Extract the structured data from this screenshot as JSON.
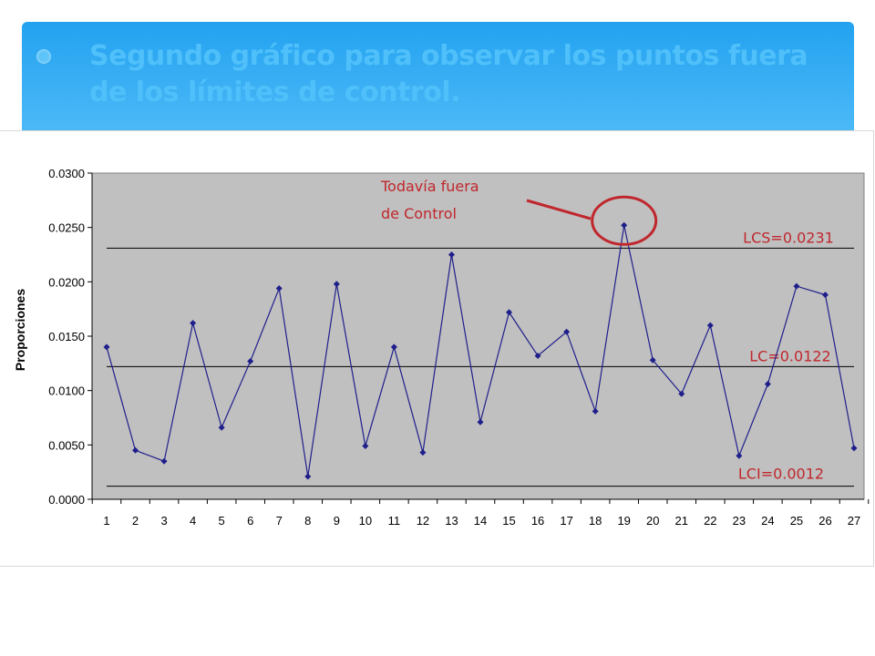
{
  "slide": {
    "title": "Segundo gráfico para observar los puntos fuera de los límites de control."
  },
  "colors": {
    "banner": "#2aa6f2",
    "title_text": "#4fc0fa",
    "plot_bg": "#c0c0c0",
    "series": "#1f1f8c",
    "annotation": "#c0272d"
  },
  "chart_data": {
    "type": "line",
    "ylabel": "Proporciones",
    "xlabel": "",
    "x": [
      1,
      2,
      3,
      4,
      5,
      6,
      7,
      8,
      9,
      10,
      11,
      12,
      13,
      14,
      15,
      16,
      17,
      18,
      19,
      20,
      21,
      22,
      23,
      24,
      25,
      26,
      27
    ],
    "series": [
      {
        "values": [
          0.014,
          0.0045,
          0.0035,
          0.0162,
          0.0066,
          0.0127,
          0.0194,
          0.0021,
          0.0198,
          0.0049,
          0.014,
          0.0043,
          0.0225,
          0.0071,
          0.0172,
          0.0132,
          0.0154,
          0.0081,
          0.0252,
          0.0128,
          0.0097,
          0.016,
          0.004,
          0.0106,
          0.0196,
          0.0188,
          0.0047
        ]
      }
    ],
    "ylim": [
      0,
      0.03
    ],
    "yticks": [
      "0.0000",
      "0.0050",
      "0.0100",
      "0.0150",
      "0.0200",
      "0.0250",
      "0.0300"
    ],
    "ytick_values": [
      0,
      0.005,
      0.01,
      0.015,
      0.02,
      0.025,
      0.03
    ],
    "control_lines": [
      {
        "label": "LCS=0.0231",
        "value": 0.0231
      },
      {
        "label": "LC=0.0122",
        "value": 0.0122
      },
      {
        "label": "LCI=0.0012",
        "value": 0.0012
      }
    ],
    "annotation": {
      "line1": "Todavía fuera",
      "line2": "de Control",
      "target_x": 19
    },
    "grid": false,
    "legend": "none"
  }
}
